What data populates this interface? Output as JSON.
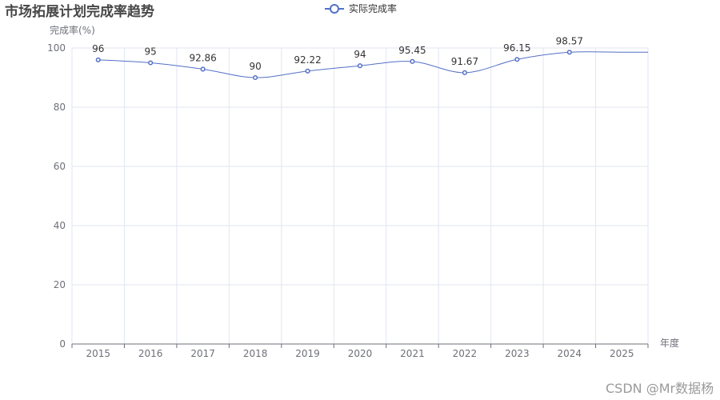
{
  "chart_data": {
    "type": "line",
    "title": "市场拓展计划完成率趋势",
    "xlabel": "年度",
    "ylabel": "完成率(%)",
    "categories": [
      "2015",
      "2016",
      "2017",
      "2018",
      "2019",
      "2020",
      "2021",
      "2022",
      "2023",
      "2024",
      "2025"
    ],
    "series": [
      {
        "name": "实际完成率",
        "values": [
          96,
          95,
          92.86,
          90,
          92.22,
          94,
          95.45,
          91.67,
          96.15,
          98.57,
          98.57
        ],
        "labels": [
          "96",
          "95",
          "92.86",
          "90",
          "92.22",
          "94",
          "95.45",
          "91.67",
          "96.15",
          "98.57",
          ""
        ],
        "color": "#5470c6",
        "smooth": true
      }
    ],
    "ylim": [
      0,
      100
    ],
    "yticks": [
      0,
      20,
      40,
      60,
      80,
      100
    ],
    "legend": "top-center",
    "grid": true,
    "grid_color": "#e0e6f1",
    "axis_color": "#6e7079"
  },
  "watermark": "CSDN @Mr数据杨"
}
